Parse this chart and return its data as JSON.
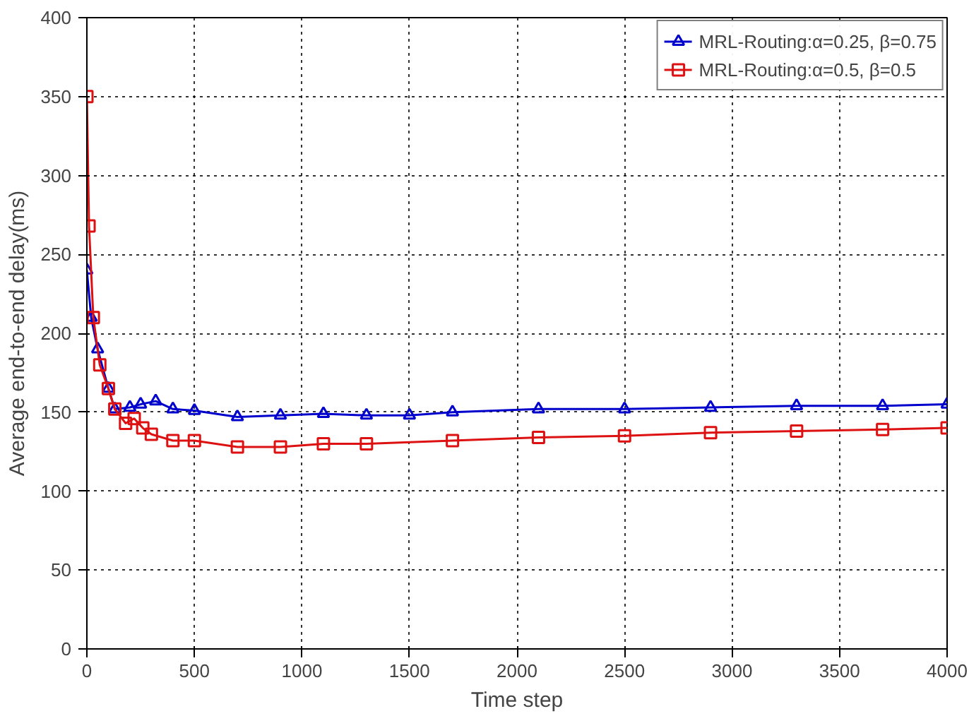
{
  "chart_data": {
    "type": "line",
    "xlabel": "Time step",
    "ylabel": "Average end-to-end delay(ms)",
    "xlim": [
      0,
      4000
    ],
    "ylim": [
      0,
      400
    ],
    "xticks": [
      0,
      500,
      1000,
      1500,
      2000,
      2500,
      3000,
      3500,
      4000
    ],
    "yticks": [
      0,
      50,
      100,
      150,
      200,
      250,
      300,
      350,
      400
    ],
    "grid": true,
    "legend": "top right",
    "line_style": "solid",
    "series": [
      {
        "name": "MRL-Routing:α=0.25, β=0.75",
        "color": "#0000cc",
        "marker": "triangle",
        "x": [
          0,
          20,
          50,
          100,
          130,
          200,
          250,
          320,
          400,
          500,
          700,
          900,
          1100,
          1300,
          1500,
          1700,
          2100,
          2500,
          2900,
          3300,
          3700,
          4000
        ],
        "values": [
          240,
          210,
          190,
          165,
          152,
          153,
          155,
          157,
          152,
          151,
          147,
          148,
          149,
          148,
          148,
          150,
          152,
          152,
          153,
          154,
          154,
          155
        ]
      },
      {
        "name": "MRL-Routing:α=0.5, β=0.5",
        "color": "#dd1111",
        "marker": "square",
        "x": [
          0,
          10,
          30,
          60,
          100,
          130,
          180,
          220,
          260,
          300,
          400,
          500,
          700,
          900,
          1100,
          1300,
          1700,
          2100,
          2500,
          2900,
          3300,
          3700,
          4000
        ],
        "values": [
          350,
          268,
          210,
          180,
          165,
          152,
          143,
          146,
          140,
          136,
          132,
          132,
          128,
          128,
          130,
          130,
          132,
          134,
          135,
          137,
          138,
          139,
          140
        ]
      }
    ]
  }
}
